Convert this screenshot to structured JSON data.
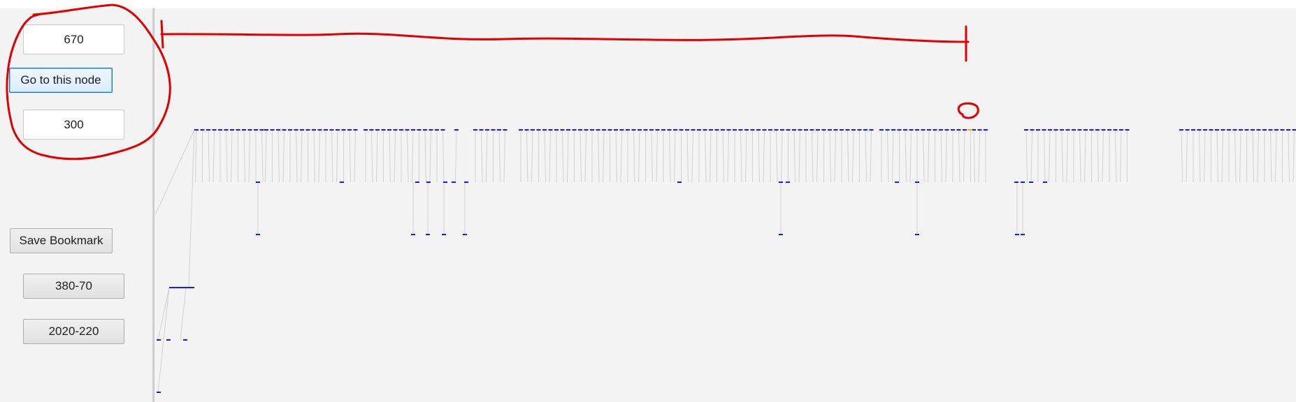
{
  "controls": {
    "node_input": {
      "value": "670"
    },
    "goto_button": {
      "label": "Go to this node"
    },
    "depth_input": {
      "value": "300"
    },
    "save_bookmark_button": {
      "label": "Save Bookmark"
    },
    "bookmarks": [
      {
        "label": "380-70"
      },
      {
        "label": "2020-220"
      }
    ]
  },
  "colors": {
    "node": "#0000ff",
    "edge": "#d0d0d0",
    "annotation": "#e00000",
    "panel_bg": "#f3f3f3"
  },
  "graph": {
    "levels": 6,
    "level0_node_count": 1,
    "top_segments": [
      {
        "from": 0,
        "to": 96
      },
      {
        "from": 100,
        "to": 229
      },
      {
        "from": 242,
        "to": 358
      },
      {
        "from": 372,
        "to": 380
      },
      {
        "from": 399,
        "to": 445
      },
      {
        "from": 464,
        "to": 966
      },
      {
        "from": 980,
        "to": 1108
      },
      {
        "from": 1112,
        "to": 1132
      },
      {
        "from": 1187,
        "to": 1339
      },
      {
        "from": 1409,
        "to": 1650
      }
    ],
    "top_row_node_spacing": 8.5
  },
  "annotations": {
    "selected_range_start": 0,
    "selected_range_end": 1163,
    "highlighted_node": 1162
  }
}
